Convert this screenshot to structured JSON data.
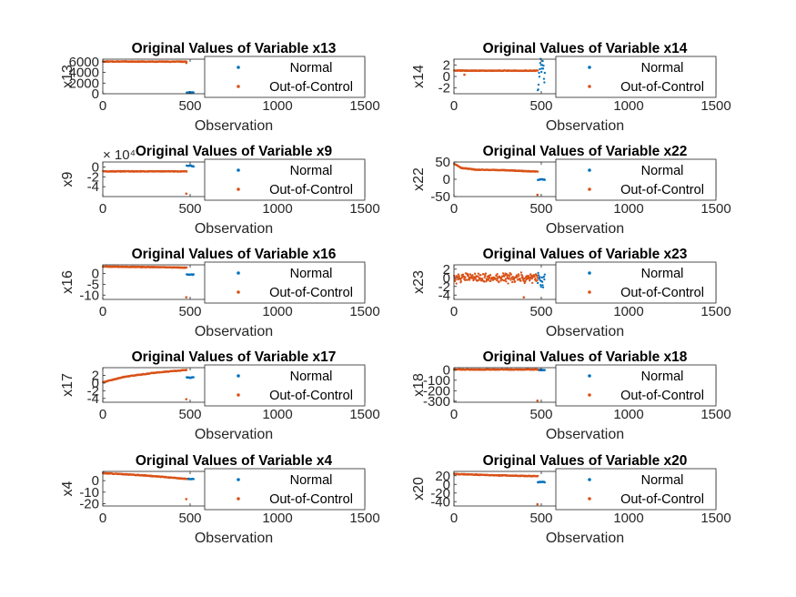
{
  "colors": {
    "normal": "#0072BD",
    "out_of_control": "#D95319"
  },
  "chart_data": [
    {
      "type": "scatter",
      "title": "Original Values of Variable x13",
      "xlabel": "Observation",
      "ylabel": "x13",
      "xlim": [
        0,
        1500
      ],
      "ylim": [
        0,
        6500
      ],
      "xticks": [
        0,
        500,
        1000,
        1500
      ],
      "yticks": [
        0,
        2000,
        4000,
        6000
      ],
      "xticklabels": [
        "0",
        "500",
        "1000",
        "1500"
      ],
      "yticklabels": [
        "0",
        "2000",
        "4000",
        "6000"
      ],
      "exponent": "",
      "legend": {
        "location": "right",
        "entries": [
          "Normal",
          "Out-of-Control"
        ]
      },
      "series": [
        {
          "name": "Normal",
          "x_range": [
            480,
            520
          ],
          "y": [
            [
              0,
              230
            ],
            [
              20,
              240
            ],
            [
              40,
              225
            ]
          ]
        },
        {
          "name": "Out-of-Control",
          "x_range": [
            1,
            480
          ],
          "y": [
            [
              0,
              6050
            ],
            [
              240,
              6040
            ],
            [
              480,
              6030
            ]
          ]
        }
      ],
      "outliers": [
        {
          "series": "Out-of-Control",
          "x": 478,
          "y": 5800
        }
      ]
    },
    {
      "type": "scatter",
      "title": "Original Values of Variable x14",
      "xlabel": "Observation",
      "ylabel": "x14",
      "xlim": [
        0,
        1500
      ],
      "ylim": [
        -3,
        3
      ],
      "xticks": [
        0,
        500,
        1000,
        1500
      ],
      "yticks": [
        -2,
        0,
        2
      ],
      "xticklabels": [
        "0",
        "500",
        "1000",
        "1500"
      ],
      "yticklabels": [
        "-2",
        "0",
        "2"
      ],
      "exponent": "",
      "legend": {
        "location": "right",
        "entries": [
          "Normal",
          "Out-of-Control"
        ]
      },
      "series": [
        {
          "name": "Normal",
          "x_range": [
            480,
            520
          ],
          "y": [
            [
              0,
              -1.8
            ],
            [
              20,
              2.5
            ],
            [
              40,
              0.2
            ]
          ],
          "noise": 2.0
        },
        {
          "name": "Out-of-Control",
          "x_range": [
            1,
            480
          ],
          "y": [
            [
              0,
              1.0
            ],
            [
              240,
              1.0
            ],
            [
              480,
              1.0
            ]
          ]
        }
      ],
      "outliers": [
        {
          "series": "Out-of-Control",
          "x": 60,
          "y": 0.3
        }
      ]
    },
    {
      "type": "scatter",
      "title": "Original Values of Variable x9",
      "xlabel": "Observation",
      "ylabel": "x9",
      "xlim": [
        0,
        1500
      ],
      "ylim": [
        -6,
        1
      ],
      "xticks": [
        0,
        500,
        1000,
        1500
      ],
      "yticks": [
        -4,
        -2,
        0
      ],
      "xticklabels": [
        "0",
        "500",
        "1000",
        "1500"
      ],
      "yticklabels": [
        "-4",
        "-2",
        "0"
      ],
      "exponent": "× 10⁴",
      "legend": {
        "location": "right",
        "entries": [
          "Normal",
          "Out-of-Control"
        ]
      },
      "series": [
        {
          "name": "Normal",
          "x_range": [
            480,
            520
          ],
          "y": [
            [
              0,
              0.2
            ],
            [
              20,
              0.3
            ],
            [
              40,
              0.1
            ]
          ]
        },
        {
          "name": "Out-of-Control",
          "x_range": [
            1,
            480
          ],
          "y": [
            [
              0,
              -0.9
            ],
            [
              240,
              -0.9
            ],
            [
              480,
              -0.9
            ]
          ]
        }
      ],
      "outliers": [
        {
          "series": "Out-of-Control",
          "x": 478,
          "y": -5.4
        }
      ]
    },
    {
      "type": "scatter",
      "title": "Original Values of Variable x22",
      "xlabel": "Observation",
      "ylabel": "x22",
      "xlim": [
        0,
        1500
      ],
      "ylim": [
        -50,
        50
      ],
      "xticks": [
        0,
        500,
        1000,
        1500
      ],
      "yticks": [
        -50,
        0,
        50
      ],
      "xticklabels": [
        "0",
        "500",
        "1000",
        "1500"
      ],
      "yticklabels": [
        "-50",
        "0",
        "50"
      ],
      "exponent": "",
      "legend": {
        "location": "right",
        "entries": [
          "Normal",
          "Out-of-Control"
        ]
      },
      "series": [
        {
          "name": "Normal",
          "x_range": [
            480,
            520
          ],
          "y": [
            [
              0,
              -2
            ],
            [
              20,
              0
            ],
            [
              40,
              -1
            ]
          ]
        },
        {
          "name": "Out-of-Control",
          "x_range": [
            1,
            480
          ],
          "y": [
            [
              0,
              45
            ],
            [
              40,
              33
            ],
            [
              120,
              28
            ],
            [
              300,
              26
            ],
            [
              480,
              22
            ]
          ]
        }
      ],
      "outliers": [
        {
          "series": "Out-of-Control",
          "x": 478,
          "y": -45
        }
      ]
    },
    {
      "type": "scatter",
      "title": "Original Values of Variable x16",
      "xlabel": "Observation",
      "ylabel": "x16",
      "xlim": [
        0,
        1500
      ],
      "ylim": [
        -12,
        4
      ],
      "xticks": [
        0,
        500,
        1000,
        1500
      ],
      "yticks": [
        -10,
        -5,
        0
      ],
      "xticklabels": [
        "0",
        "500",
        "1000",
        "1500"
      ],
      "yticklabels": [
        "-10",
        "-5",
        "0"
      ],
      "exponent": "",
      "legend": {
        "location": "right",
        "entries": [
          "Normal",
          "Out-of-Control"
        ]
      },
      "series": [
        {
          "name": "Normal",
          "x_range": [
            480,
            520
          ],
          "y": [
            [
              0,
              -0.5
            ],
            [
              20,
              -0.6
            ],
            [
              40,
              -0.5
            ]
          ]
        },
        {
          "name": "Out-of-Control",
          "x_range": [
            1,
            480
          ],
          "y": [
            [
              0,
              3.2
            ],
            [
              240,
              3.0
            ],
            [
              480,
              2.7
            ]
          ]
        }
      ],
      "outliers": [
        {
          "series": "Out-of-Control",
          "x": 478,
          "y": -11
        }
      ]
    },
    {
      "type": "scatter",
      "title": "Original Values of Variable x23",
      "xlabel": "Observation",
      "ylabel": "x23",
      "xlim": [
        0,
        1500
      ],
      "ylim": [
        -5,
        3
      ],
      "xticks": [
        0,
        500,
        1000,
        1500
      ],
      "yticks": [
        -4,
        -2,
        0,
        2
      ],
      "xticklabels": [
        "0",
        "500",
        "1000",
        "1500"
      ],
      "yticklabels": [
        "-4",
        "-2",
        "0",
        "2"
      ],
      "exponent": "",
      "legend": {
        "location": "right",
        "entries": [
          "Normal",
          "Out-of-Control"
        ]
      },
      "series": [
        {
          "name": "Normal",
          "x_range": [
            480,
            520
          ],
          "y": [
            [
              0,
              -0.5
            ],
            [
              40,
              -0.5
            ]
          ],
          "noise": 2.2
        },
        {
          "name": "Out-of-Control",
          "x_range": [
            1,
            480
          ],
          "y": [
            [
              0,
              0
            ],
            [
              480,
              0
            ]
          ],
          "noise": 1.4
        }
      ],
      "outliers": [
        {
          "series": "Out-of-Control",
          "x": 400,
          "y": -4.5
        }
      ]
    },
    {
      "type": "scatter",
      "title": "Original Values of Variable x17",
      "xlabel": "Observation",
      "ylabel": "x17",
      "xlim": [
        0,
        1500
      ],
      "ylim": [
        -5,
        4
      ],
      "xticks": [
        0,
        500,
        1000,
        1500
      ],
      "yticks": [
        -4,
        -2,
        0,
        2
      ],
      "xticklabels": [
        "0",
        "500",
        "1000",
        "1500"
      ],
      "yticklabels": [
        "-4",
        "-2",
        "0",
        "2"
      ],
      "exponent": "",
      "legend": {
        "location": "right",
        "entries": [
          "Normal",
          "Out-of-Control"
        ]
      },
      "series": [
        {
          "name": "Normal",
          "x_range": [
            480,
            520
          ],
          "y": [
            [
              0,
              1.5
            ],
            [
              20,
              1.4
            ],
            [
              40,
              1.5
            ]
          ]
        },
        {
          "name": "Out-of-Control",
          "x_range": [
            1,
            480
          ],
          "y": [
            [
              0,
              0.2
            ],
            [
              120,
              1.6
            ],
            [
              300,
              2.7
            ],
            [
              480,
              3.4
            ]
          ]
        }
      ],
      "outliers": [
        {
          "series": "Out-of-Control",
          "x": 478,
          "y": -4.2
        }
      ]
    },
    {
      "type": "scatter",
      "title": "Original Values of Variable x18",
      "xlabel": "Observation",
      "ylabel": "x18",
      "xlim": [
        0,
        1500
      ],
      "ylim": [
        -310,
        20
      ],
      "xticks": [
        0,
        500,
        1000,
        1500
      ],
      "yticks": [
        -300,
        -200,
        -100,
        0
      ],
      "xticklabels": [
        "0",
        "500",
        "1000",
        "1500"
      ],
      "yticklabels": [
        "-300",
        "-200",
        "-100",
        "0"
      ],
      "exponent": "",
      "legend": {
        "location": "right",
        "entries": [
          "Normal",
          "Out-of-Control"
        ]
      },
      "series": [
        {
          "name": "Normal",
          "x_range": [
            480,
            520
          ],
          "y": [
            [
              0,
              -2
            ],
            [
              40,
              -2
            ]
          ]
        },
        {
          "name": "Out-of-Control",
          "x_range": [
            1,
            480
          ],
          "y": [
            [
              0,
              2
            ],
            [
              480,
              2
            ]
          ]
        }
      ],
      "outliers": [
        {
          "series": "Out-of-Control",
          "x": 478,
          "y": -295
        }
      ]
    },
    {
      "type": "scatter",
      "title": "Original Values of Variable x4",
      "xlabel": "Observation",
      "ylabel": "x4",
      "xlim": [
        0,
        1500
      ],
      "ylim": [
        -22,
        8
      ],
      "xticks": [
        0,
        500,
        1000,
        1500
      ],
      "yticks": [
        -20,
        -10,
        0
      ],
      "xticklabels": [
        "0",
        "500",
        "1000",
        "1500"
      ],
      "yticklabels": [
        "-20",
        "-10",
        "0"
      ],
      "exponent": "",
      "legend": {
        "location": "right",
        "entries": [
          "Normal",
          "Out-of-Control"
        ]
      },
      "series": [
        {
          "name": "Normal",
          "x_range": [
            480,
            520
          ],
          "y": [
            [
              0,
              1.5
            ],
            [
              40,
              1.4
            ]
          ]
        },
        {
          "name": "Out-of-Control",
          "x_range": [
            1,
            480
          ],
          "y": [
            [
              0,
              6.5
            ],
            [
              240,
              4.5
            ],
            [
              480,
              1.5
            ]
          ]
        }
      ],
      "outliers": [
        {
          "series": "Out-of-Control",
          "x": 478,
          "y": -16
        }
      ]
    },
    {
      "type": "scatter",
      "title": "Original Values of Variable x20",
      "xlabel": "Observation",
      "ylabel": "x20",
      "xlim": [
        0,
        1500
      ],
      "ylim": [
        -50,
        30
      ],
      "xticks": [
        0,
        500,
        1000,
        1500
      ],
      "yticks": [
        -40,
        -20,
        0,
        20
      ],
      "xticklabels": [
        "0",
        "500",
        "1000",
        "1500"
      ],
      "yticklabels": [
        "-40",
        "-20",
        "0",
        "20"
      ],
      "exponent": "",
      "legend": {
        "location": "right",
        "entries": [
          "Normal",
          "Out-of-Control"
        ]
      },
      "series": [
        {
          "name": "Normal",
          "x_range": [
            480,
            520
          ],
          "y": [
            [
              0,
              5
            ],
            [
              20,
              6
            ],
            [
              40,
              5
            ]
          ]
        },
        {
          "name": "Out-of-Control",
          "x_range": [
            1,
            480
          ],
          "y": [
            [
              0,
              24
            ],
            [
              240,
              21
            ],
            [
              480,
              19
            ]
          ]
        }
      ],
      "outliers": [
        {
          "series": "Out-of-Control",
          "x": 478,
          "y": -46
        }
      ]
    }
  ]
}
